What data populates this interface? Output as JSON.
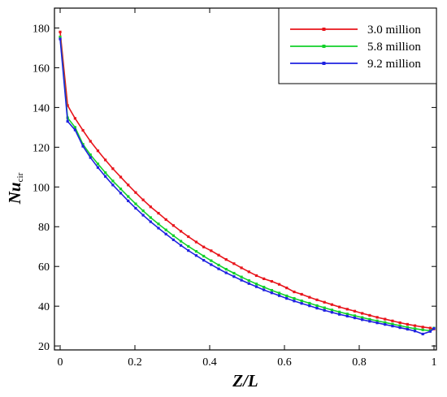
{
  "chart_data": {
    "type": "line",
    "xlabel": "Z/L",
    "ylabel_main": "Nu",
    "ylabel_sub": "cir",
    "xlim": [
      0,
      1
    ],
    "ylim": [
      18,
      190
    ],
    "x_ticks": [
      {
        "value": 0,
        "label": "0"
      },
      {
        "value": 0.2,
        "label": "0.2"
      },
      {
        "value": 0.4,
        "label": "0.4"
      },
      {
        "value": 0.6,
        "label": "0.6"
      },
      {
        "value": 0.8,
        "label": "0.8"
      },
      {
        "value": 1,
        "label": "1"
      }
    ],
    "y_ticks": [
      {
        "value": 20,
        "label": "20"
      },
      {
        "value": 40,
        "label": "40"
      },
      {
        "value": 60,
        "label": "60"
      },
      {
        "value": 80,
        "label": "80"
      },
      {
        "value": 100,
        "label": "100"
      },
      {
        "value": 120,
        "label": "120"
      },
      {
        "value": 140,
        "label": "140"
      },
      {
        "value": 160,
        "label": "160"
      },
      {
        "value": 180,
        "label": "180"
      }
    ],
    "grid": false,
    "legend_position": "top-right",
    "series": [
      {
        "name": "3.0 million",
        "color": "#e8141b",
        "x": [
          0.0,
          0.02,
          0.04,
          0.061,
          0.081,
          0.101,
          0.121,
          0.141,
          0.162,
          0.182,
          0.202,
          0.222,
          0.242,
          0.263,
          0.283,
          0.303,
          0.323,
          0.343,
          0.364,
          0.384,
          0.404,
          0.424,
          0.444,
          0.465,
          0.485,
          0.505,
          0.525,
          0.545,
          0.566,
          0.586,
          0.606,
          0.626,
          0.646,
          0.667,
          0.687,
          0.707,
          0.727,
          0.747,
          0.768,
          0.788,
          0.808,
          0.828,
          0.848,
          0.869,
          0.889,
          0.909,
          0.929,
          0.949,
          0.97,
          0.99,
          1.0
        ],
        "y": [
          178.0,
          141.0,
          134.5,
          128.5,
          123.0,
          118.2,
          113.6,
          109.2,
          105.0,
          101.0,
          97.2,
          93.5,
          90.0,
          86.8,
          83.6,
          80.6,
          77.7,
          75.0,
          72.3,
          69.8,
          67.9,
          65.7,
          63.5,
          61.4,
          59.3,
          57.3,
          55.4,
          53.8,
          52.5,
          51.0,
          49.2,
          47.2,
          46.0,
          44.5,
          43.2,
          42.0,
          40.8,
          39.6,
          38.5,
          37.5,
          36.4,
          35.4,
          34.4,
          33.5,
          32.6,
          31.7,
          30.9,
          30.2,
          29.5,
          29.0,
          28.5
        ]
      },
      {
        "name": "5.8 million",
        "color": "#12d12a",
        "x": [
          0.0,
          0.02,
          0.04,
          0.061,
          0.081,
          0.101,
          0.121,
          0.141,
          0.162,
          0.182,
          0.202,
          0.222,
          0.242,
          0.263,
          0.283,
          0.303,
          0.323,
          0.343,
          0.364,
          0.384,
          0.404,
          0.424,
          0.444,
          0.465,
          0.485,
          0.505,
          0.525,
          0.545,
          0.566,
          0.586,
          0.606,
          0.626,
          0.646,
          0.667,
          0.687,
          0.707,
          0.727,
          0.747,
          0.768,
          0.788,
          0.808,
          0.828,
          0.848,
          0.869,
          0.889,
          0.909,
          0.929,
          0.949,
          0.97,
          0.99,
          1.0
        ],
        "y": [
          175.5,
          134.8,
          130.0,
          121.5,
          116.2,
          111.6,
          107.2,
          103.0,
          99.0,
          95.2,
          91.5,
          88.0,
          84.6,
          81.4,
          78.4,
          75.5,
          72.7,
          70.1,
          67.6,
          65.2,
          62.9,
          60.7,
          58.6,
          56.6,
          54.7,
          52.9,
          51.2,
          49.6,
          48.0,
          46.6,
          45.2,
          43.9,
          42.7,
          41.5,
          40.3,
          39.2,
          38.1,
          37.1,
          36.1,
          35.2,
          34.3,
          33.4,
          32.6,
          31.8,
          31.0,
          30.2,
          29.4,
          28.7,
          28.1,
          27.7,
          29.0
        ]
      },
      {
        "name": "9.2 million",
        "color": "#1f22e0",
        "x": [
          0.0,
          0.02,
          0.04,
          0.061,
          0.081,
          0.101,
          0.121,
          0.141,
          0.162,
          0.182,
          0.202,
          0.222,
          0.242,
          0.263,
          0.283,
          0.303,
          0.323,
          0.343,
          0.364,
          0.384,
          0.404,
          0.424,
          0.444,
          0.465,
          0.485,
          0.505,
          0.525,
          0.545,
          0.566,
          0.586,
          0.606,
          0.626,
          0.646,
          0.667,
          0.687,
          0.707,
          0.727,
          0.747,
          0.768,
          0.788,
          0.808,
          0.828,
          0.848,
          0.869,
          0.889,
          0.909,
          0.929,
          0.949,
          0.97,
          0.99,
          1.0
        ],
        "y": [
          174.5,
          133.0,
          128.7,
          120.5,
          114.8,
          109.8,
          105.3,
          101.0,
          96.9,
          93.0,
          89.3,
          85.8,
          82.5,
          79.3,
          76.3,
          73.4,
          70.6,
          68.0,
          65.5,
          63.1,
          60.9,
          58.8,
          56.8,
          54.9,
          53.1,
          51.4,
          49.8,
          48.2,
          46.7,
          45.3,
          43.9,
          42.6,
          41.4,
          40.2,
          39.0,
          37.9,
          36.9,
          35.9,
          35.0,
          34.1,
          33.2,
          32.4,
          31.6,
          30.8,
          30.0,
          29.2,
          28.4,
          27.5,
          26.0,
          27.3,
          28.8
        ]
      }
    ]
  }
}
